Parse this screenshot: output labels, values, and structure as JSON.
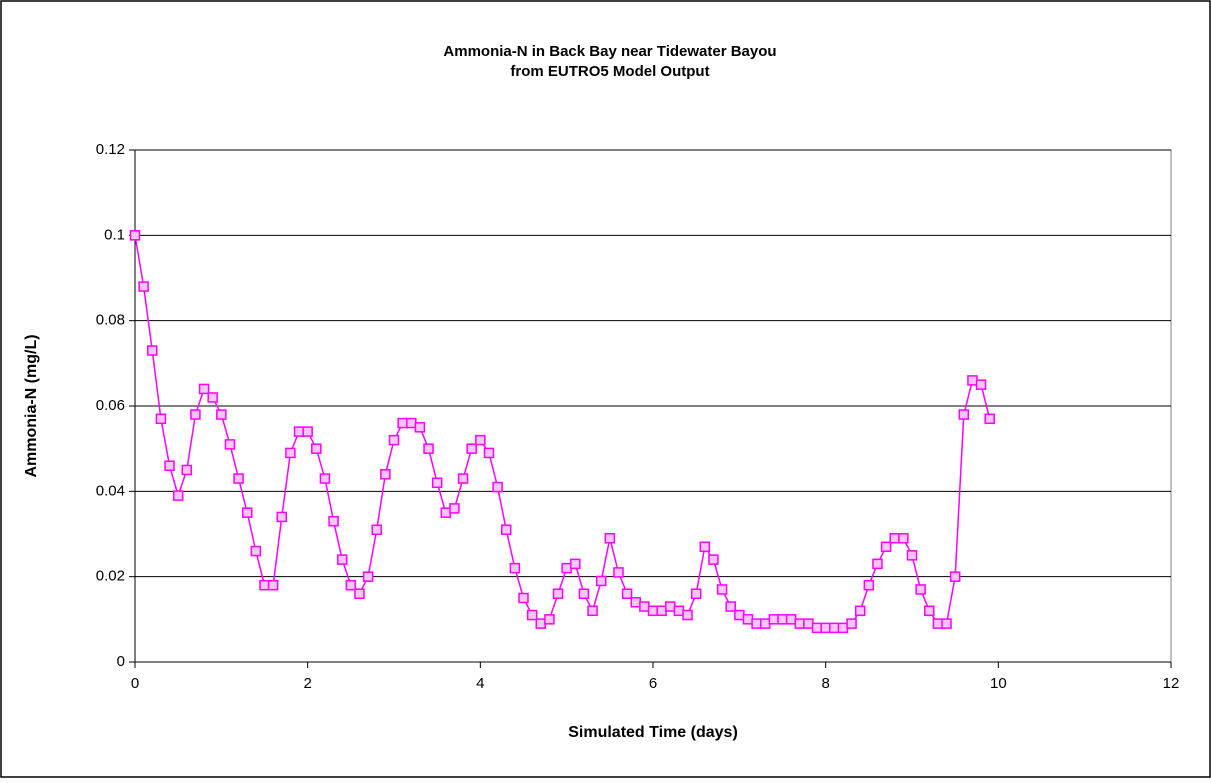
{
  "chart_data": {
    "type": "line",
    "title": "Ammonia-N in Back Bay near Tidewater Bayou",
    "subtitle": "from EUTRO5 Model Output",
    "x_label": "Simulated Time (days)",
    "y_label": "Ammonia-N (mg/L)",
    "x": [
      0,
      0.1,
      0.2,
      0.3,
      0.4,
      0.5,
      0.6,
      0.7,
      0.8,
      0.9,
      1.0,
      1.1,
      1.2,
      1.3,
      1.4,
      1.5,
      1.6,
      1.7,
      1.8,
      1.9,
      2.0,
      2.1,
      2.2,
      2.3,
      2.4,
      2.5,
      2.6,
      2.7,
      2.8,
      2.9,
      3.0,
      3.1,
      3.2,
      3.3,
      3.4,
      3.5,
      3.6,
      3.7,
      3.8,
      3.9,
      4.0,
      4.1,
      4.2,
      4.3,
      4.4,
      4.5,
      4.6,
      4.7,
      4.8,
      4.9,
      5.0,
      5.1,
      5.2,
      5.3,
      5.4,
      5.5,
      5.6,
      5.7,
      5.8,
      5.9,
      6.0,
      6.1,
      6.2,
      6.3,
      6.4,
      6.5,
      6.6,
      6.7,
      6.8,
      6.9,
      7.0,
      7.1,
      7.2,
      7.3,
      7.4,
      7.5,
      7.6,
      7.7,
      7.8,
      7.9,
      8.0,
      8.1,
      8.2,
      8.3,
      8.4,
      8.5,
      8.6,
      8.7,
      8.8,
      8.9,
      9.0,
      9.1,
      9.2,
      9.3,
      9.4,
      9.5,
      9.6,
      9.7,
      9.8,
      9.9
    ],
    "series": [
      {
        "name": "Ammonia-N",
        "color": "#ff00ff",
        "values": [
          0.1,
          0.088,
          0.073,
          0.057,
          0.046,
          0.039,
          0.045,
          0.058,
          0.064,
          0.062,
          0.058,
          0.051,
          0.043,
          0.035,
          0.026,
          0.018,
          0.018,
          0.034,
          0.049,
          0.054,
          0.054,
          0.05,
          0.043,
          0.033,
          0.024,
          0.018,
          0.016,
          0.02,
          0.031,
          0.044,
          0.052,
          0.056,
          0.056,
          0.055,
          0.05,
          0.042,
          0.035,
          0.036,
          0.043,
          0.05,
          0.052,
          0.049,
          0.041,
          0.031,
          0.022,
          0.015,
          0.011,
          0.009,
          0.01,
          0.016,
          0.022,
          0.023,
          0.016,
          0.012,
          0.019,
          0.029,
          0.021,
          0.016,
          0.014,
          0.013,
          0.012,
          0.012,
          0.013,
          0.012,
          0.011,
          0.016,
          0.027,
          0.024,
          0.017,
          0.013,
          0.011,
          0.01,
          0.009,
          0.009,
          0.01,
          0.01,
          0.01,
          0.009,
          0.009,
          0.008,
          0.008,
          0.008,
          0.008,
          0.009,
          0.012,
          0.018,
          0.023,
          0.027,
          0.029,
          0.029,
          0.025,
          0.017,
          0.012,
          0.009,
          0.009,
          0.02,
          0.058,
          0.066,
          0.065,
          0.057
        ]
      }
    ],
    "xlim": [
      0,
      12
    ],
    "xticks": [
      0,
      2,
      4,
      6,
      8,
      10,
      12
    ],
    "ylim": [
      0,
      0.12
    ],
    "yticks": [
      0,
      0.02,
      0.04,
      0.06,
      0.08,
      0.1,
      0.12
    ],
    "grid": true
  }
}
